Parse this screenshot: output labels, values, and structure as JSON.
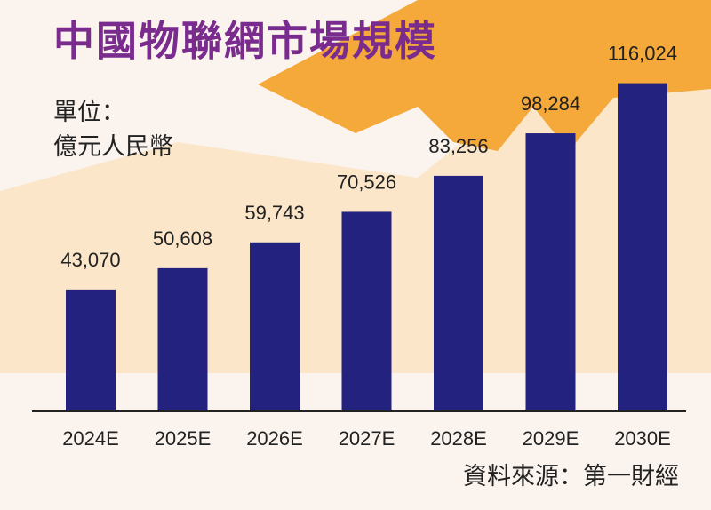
{
  "chart_data": {
    "type": "bar",
    "title": "中國物聯網市場規模",
    "unit_label": "單位：",
    "unit_value": "億元人民幣",
    "categories": [
      "2024E",
      "2025E",
      "2026E",
      "2027E",
      "2028E",
      "2029E",
      "2030E"
    ],
    "values": [
      43070,
      50608,
      59743,
      70526,
      83256,
      98284,
      116024
    ],
    "value_labels": [
      "43,070",
      "50,608",
      "59,743",
      "70,526",
      "83,256",
      "98,284",
      "116,024"
    ],
    "ylim": [
      0,
      125000
    ],
    "grid": false,
    "bar_color": "#23227f",
    "source": "資料來源：第一財經"
  },
  "colors": {
    "background": "#fbf4ee",
    "accent_orange": "#f4a93a",
    "accent_light": "#fbe6c9",
    "title": "#7a2b8e"
  }
}
